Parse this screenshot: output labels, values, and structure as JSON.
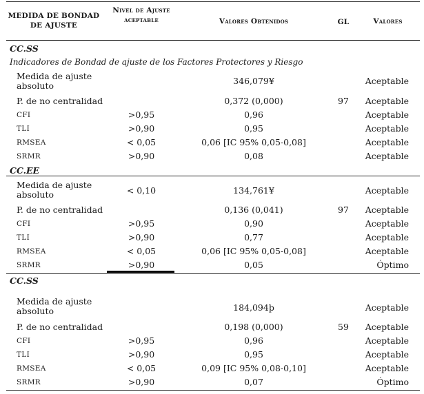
{
  "header": {
    "col1": "MEDIDA DE BONDAD DE AJUSTE",
    "col2": "Nivel de Ajuste aceptable",
    "col3": "Valores Obtenidos",
    "col4": "GL",
    "col5": "Valores"
  },
  "sections": [
    {
      "title": "CC.SS",
      "subtitle": "Indicadores de Bondad de ajuste de los Factores Protectores y Riesgo",
      "rows": [
        {
          "measure": "Medida de ajuste absoluto",
          "level": "",
          "value": "346,079¥",
          "gl": "",
          "result": "Aceptable"
        },
        {
          "measure": "P. de no centralidad",
          "level": "",
          "value": "0,372 (0,000)",
          "gl": "97",
          "result": "Aceptable"
        },
        {
          "measure": "CFI",
          "level": ">0,95",
          "value": "0,96",
          "gl": "",
          "result": "Aceptable"
        },
        {
          "measure": "TLI",
          "level": ">0,90",
          "value": "0,95",
          "gl": "",
          "result": "Aceptable"
        },
        {
          "measure": "RMSEA",
          "level": "< 0,05",
          "value": "0,06 [IC 95% 0,05-0,08]",
          "gl": "",
          "result": "Aceptable"
        },
        {
          "measure": "SRMR",
          "level": ">0,90",
          "value": "0,08",
          "gl": "",
          "result": "Aceptable"
        }
      ]
    },
    {
      "title": "CC.EE",
      "subtitle": "",
      "rows": [
        {
          "measure": "Medida de ajuste absoluto",
          "level": "< 0,10",
          "value": "134,761¥",
          "gl": "",
          "result": "Aceptable"
        },
        {
          "measure": "P. de no centralidad",
          "level": "",
          "value": "0,136 (0,041)",
          "gl": "97",
          "result": "Aceptable"
        },
        {
          "measure": "CFI",
          "level": ">0,95",
          "value": "0,90",
          "gl": "",
          "result": "Aceptable"
        },
        {
          "measure": "TLI",
          "level": ">0,90",
          "value": "0,77",
          "gl": "",
          "result": "Aceptable"
        },
        {
          "measure": "RMSEA",
          "level": "< 0,05",
          "value": "0,06 [IC 95% 0,05-0,08]",
          "gl": "",
          "result": "Aceptable"
        },
        {
          "measure": "SRMR",
          "level": ">0,90",
          "value": "0,05",
          "gl": "",
          "result": "Óptimo"
        }
      ]
    },
    {
      "title": "CC.SS",
      "subtitle": "",
      "rows": [
        {
          "measure": "Medida de ajuste absoluto",
          "level": "",
          "value": "184,094þ",
          "gl": "",
          "result": "Aceptable"
        },
        {
          "measure": "P. de no centralidad",
          "level": "",
          "value": "0,198 (0,000)",
          "gl": "59",
          "result": "Aceptable"
        },
        {
          "measure": "CFI",
          "level": ">0,95",
          "value": "0,96",
          "gl": "",
          "result": "Aceptable"
        },
        {
          "measure": "TLI",
          "level": ">0,90",
          "value": "0,95",
          "gl": "",
          "result": "Aceptable"
        },
        {
          "measure": "RMSEA",
          "level": "< 0,05",
          "value": "0,09 [IC 95% 0,08-0,10]",
          "gl": "",
          "result": "Aceptable"
        },
        {
          "measure": "SRMR",
          "level": ">0,90",
          "value": "0,07",
          "gl": "",
          "result": "Óptimo"
        }
      ]
    }
  ]
}
